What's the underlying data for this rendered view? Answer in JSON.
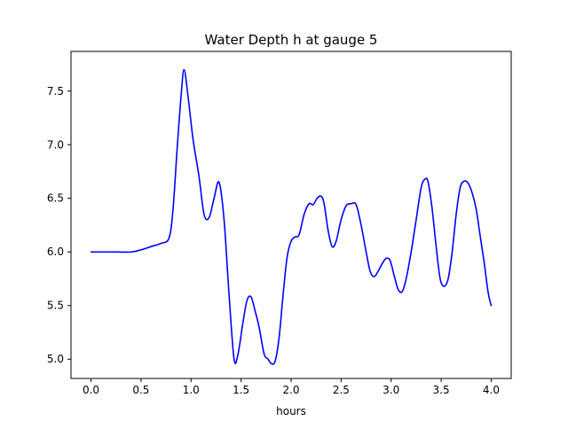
{
  "chart_data": {
    "type": "line",
    "title": "Water Depth h at gauge 5",
    "xlabel": "hours",
    "ylabel": "",
    "xlim": [
      -0.2,
      4.2
    ],
    "ylim": [
      4.82,
      7.87
    ],
    "xticks": [
      0.0,
      0.5,
      1.0,
      1.5,
      2.0,
      2.5,
      3.0,
      3.5,
      4.0
    ],
    "xtick_labels": [
      "0.0",
      "0.5",
      "1.0",
      "1.5",
      "2.0",
      "2.5",
      "3.0",
      "3.5",
      "4.0"
    ],
    "yticks": [
      5.0,
      5.5,
      6.0,
      6.5,
      7.0,
      7.5
    ],
    "ytick_labels": [
      "5.0",
      "5.5",
      "6.0",
      "6.5",
      "7.0",
      "7.5"
    ],
    "grid": false,
    "series": [
      {
        "color": "#0000ff",
        "x": [
          0.0,
          0.2,
          0.4,
          0.5,
          0.6,
          0.7,
          0.78,
          0.82,
          0.86,
          0.9,
          0.93,
          0.97,
          1.02,
          1.08,
          1.13,
          1.18,
          1.23,
          1.28,
          1.33,
          1.38,
          1.43,
          1.47,
          1.52,
          1.56,
          1.6,
          1.64,
          1.68,
          1.73,
          1.77,
          1.8,
          1.84,
          1.88,
          1.92,
          1.96,
          2.0,
          2.04,
          2.08,
          2.13,
          2.18,
          2.22,
          2.26,
          2.3,
          2.33,
          2.37,
          2.41,
          2.45,
          2.5,
          2.55,
          2.6,
          2.65,
          2.7,
          2.75,
          2.79,
          2.83,
          2.87,
          2.91,
          2.95,
          2.99,
          3.03,
          3.07,
          3.11,
          3.15,
          3.2,
          3.25,
          3.3,
          3.34,
          3.37,
          3.41,
          3.45,
          3.49,
          3.53,
          3.57,
          3.61,
          3.65,
          3.69,
          3.73,
          3.77,
          3.81,
          3.85,
          3.89,
          3.93,
          3.97,
          4.0
        ],
        "y": [
          6.0,
          6.0,
          6.0,
          6.02,
          6.05,
          6.08,
          6.13,
          6.4,
          6.95,
          7.45,
          7.7,
          7.45,
          7.05,
          6.7,
          6.35,
          6.32,
          6.5,
          6.65,
          6.3,
          5.6,
          5.0,
          5.05,
          5.35,
          5.55,
          5.58,
          5.45,
          5.3,
          5.05,
          5.0,
          4.96,
          4.98,
          5.2,
          5.6,
          5.95,
          6.1,
          6.14,
          6.16,
          6.35,
          6.45,
          6.44,
          6.5,
          6.52,
          6.45,
          6.2,
          6.05,
          6.1,
          6.3,
          6.43,
          6.45,
          6.44,
          6.25,
          6.0,
          5.82,
          5.77,
          5.82,
          5.89,
          5.94,
          5.92,
          5.78,
          5.65,
          5.63,
          5.75,
          6.0,
          6.3,
          6.6,
          6.68,
          6.65,
          6.4,
          6.05,
          5.75,
          5.68,
          5.75,
          6.0,
          6.35,
          6.6,
          6.66,
          6.64,
          6.55,
          6.4,
          6.15,
          5.9,
          5.62,
          5.5
        ]
      }
    ]
  }
}
